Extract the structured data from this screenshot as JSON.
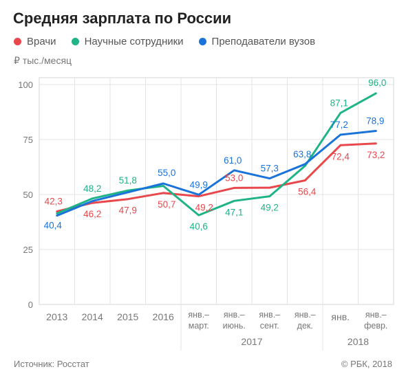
{
  "header": {
    "title": "Средняя зарплата по России",
    "unit": "₽ тыс./месяц"
  },
  "legend": [
    {
      "label": "Врачи",
      "color": "#e8474c"
    },
    {
      "label": "Научные сотрудники",
      "color": "#1fb388"
    },
    {
      "label": "Преподаватели вузов",
      "color": "#1a73d9"
    }
  ],
  "footer": {
    "source": "Источник: Росстат",
    "copyright": "© РБК, 2018"
  },
  "chart_data": {
    "type": "line",
    "title": "Средняя зарплата по России",
    "ylabel": "₽ тыс./месяц",
    "ylim": [
      0,
      100
    ],
    "yticks": [
      0,
      25,
      50,
      75,
      100
    ],
    "grid": true,
    "legend_position": "top-left",
    "categories": [
      [
        "2013"
      ],
      [
        "2014"
      ],
      [
        "2015"
      ],
      [
        "2016"
      ],
      [
        "янв.–",
        "март."
      ],
      [
        "янв.–",
        "июнь."
      ],
      [
        "янв.–",
        "сент."
      ],
      [
        "янв.–",
        "дек."
      ],
      [
        "янв."
      ],
      [
        "янв.–",
        "февр."
      ]
    ],
    "group_labels": [
      {
        "label": "2017",
        "from": 4,
        "to": 7
      },
      {
        "label": "2018",
        "from": 8,
        "to": 9
      }
    ],
    "series": [
      {
        "name": "Врачи",
        "color": "#e8474c",
        "values": [
          42.3,
          46.2,
          47.9,
          50.7,
          49.2,
          53.0,
          53.1,
          56.4,
          72.4,
          73.2
        ],
        "labels": [
          "42,3",
          "46,2",
          "47,9",
          "50,7",
          "49,2",
          "53,0",
          "",
          "56,4",
          "72,4",
          "73,2"
        ]
      },
      {
        "name": "Научные сотрудники",
        "color": "#1fb388",
        "values": [
          41.4,
          48.2,
          51.8,
          53.9,
          40.6,
          47.1,
          49.2,
          63.0,
          87.1,
          96.0
        ],
        "labels": [
          "",
          "48,2",
          "51,8",
          "",
          "40,6",
          "47,1",
          "49,2",
          "",
          "87,1",
          "96,0"
        ]
      },
      {
        "name": "Преподаватели вузов",
        "color": "#1a73d9",
        "values": [
          40.4,
          47.0,
          51.0,
          55.0,
          49.9,
          61.0,
          57.3,
          63.8,
          77.2,
          78.9
        ],
        "labels": [
          "40,4",
          "",
          "",
          "55,0",
          "49,9",
          "61,0",
          "57,3",
          "63,8",
          "77,2",
          "78,9"
        ]
      }
    ]
  }
}
